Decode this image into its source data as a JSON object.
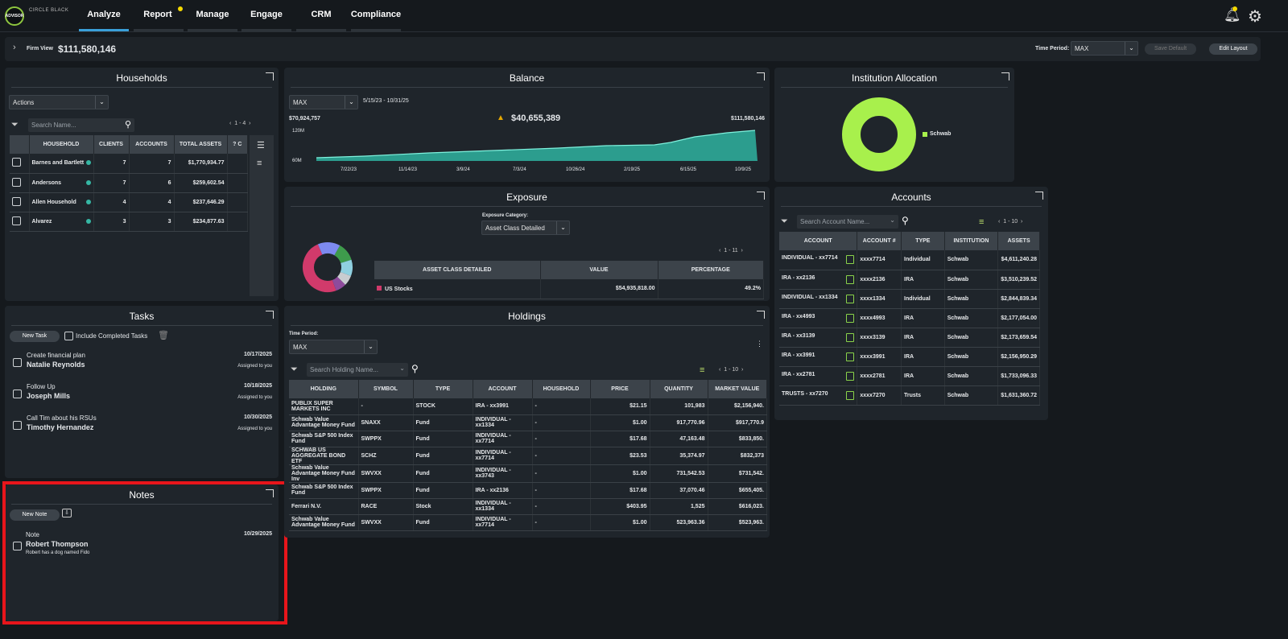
{
  "nav": {
    "logo_text": "ADVISOR",
    "logo2_text": "CIRCLE BLACK",
    "items": [
      "Analyze",
      "Report",
      "Manage",
      "Engage",
      "CRM",
      "Compliance"
    ]
  },
  "firm": {
    "label": "Firm View",
    "value": "$111,580,146",
    "time_period_label": "Time Period:",
    "time_period_value": "MAX",
    "save_default": "Save Default",
    "edit_layout": "Edit Layout"
  },
  "households": {
    "title": "Households",
    "actions": "Actions",
    "search_placeholder": "Search Name...",
    "pager": "1 - 4",
    "columns": [
      "HOUSEHOLD",
      "CLIENTS",
      "ACCOUNTS",
      "TOTAL ASSETS",
      "? C"
    ],
    "rows": [
      [
        "Barnes and Bartlett",
        "7",
        "7",
        "$1,770,934.77"
      ],
      [
        "Andersons",
        "7",
        "6",
        "$259,602.54"
      ],
      [
        "Allen Household",
        "4",
        "4",
        "$237,646.29"
      ],
      [
        "Alvarez",
        "3",
        "3",
        "$234,877.63"
      ]
    ]
  },
  "balance": {
    "title": "Balance",
    "period": "MAX",
    "range": "5/15/23 - 10/31/25",
    "left_value": "$70,924,757",
    "center_value": "$40,655,389",
    "right_value": "$111,580,146",
    "y_ticks": [
      "120M",
      "60M"
    ],
    "x_ticks": [
      "7/22/23",
      "11/14/23",
      "3/9/24",
      "7/3/24",
      "10/26/24",
      "2/19/25",
      "6/15/25",
      "10/9/25"
    ]
  },
  "institution": {
    "title": "Institution Allocation",
    "legend": "Schwab",
    "color": "#a8f04c"
  },
  "exposure": {
    "title": "Exposure",
    "category_label": "Exposure Category:",
    "category_value": "Asset Class Detailed",
    "pager": "1 - 11",
    "columns": [
      "ASSET CLASS DETAILED",
      "VALUE",
      "PERCENTAGE"
    ],
    "rows": [
      [
        "US Stocks",
        "$54,935,818.00",
        "49.2%"
      ]
    ]
  },
  "accounts": {
    "title": "Accounts",
    "search_placeholder": "Search Account Name...",
    "pager": "1 - 10",
    "columns": [
      "ACCOUNT",
      "ACCOUNT #",
      "TYPE",
      "INSTITUTION",
      "ASSETS"
    ],
    "rows": [
      [
        "INDIVIDUAL - xx7714",
        "xxxx7714",
        "Individual",
        "Schwab",
        "$4,611,240.28"
      ],
      [
        "IRA - xx2136",
        "xxxx2136",
        "IRA",
        "Schwab",
        "$3,510,239.52"
      ],
      [
        "INDIVIDUAL - xx1334",
        "xxxx1334",
        "Individual",
        "Schwab",
        "$2,844,839.34"
      ],
      [
        "IRA - xx4993",
        "xxxx4993",
        "IRA",
        "Schwab",
        "$2,177,054.00"
      ],
      [
        "IRA - xx3139",
        "xxxx3139",
        "IRA",
        "Schwab",
        "$2,173,659.54"
      ],
      [
        "IRA - xx3991",
        "xxxx3991",
        "IRA",
        "Schwab",
        "$2,156,950.29"
      ],
      [
        "IRA - xx2781",
        "xxxx2781",
        "IRA",
        "Schwab",
        "$1,733,096.33"
      ],
      [
        "TRUSTS - xx7270",
        "xxxx7270",
        "Trusts",
        "Schwab",
        "$1,631,360.72"
      ]
    ]
  },
  "tasks": {
    "title": "Tasks",
    "new_task": "New Task",
    "include_completed": "Include Completed Tasks",
    "items": [
      {
        "title": "Create financial plan",
        "person": "Natalie Reynolds",
        "date": "10/17/2025",
        "assigned": "Assigned to you"
      },
      {
        "title": "Follow Up",
        "person": "Joseph Mills",
        "date": "10/18/2025",
        "assigned": "Assigned to you"
      },
      {
        "title": "Call Tim about his RSUs",
        "person": "Timothy Hernandez",
        "date": "10/30/2025",
        "assigned": "Assigned to you"
      }
    ]
  },
  "holdings": {
    "title": "Holdings",
    "time_label": "Time Period:",
    "time_value": "MAX",
    "search_placeholder": "Search Holding Name...",
    "pager": "1 - 10",
    "columns": [
      "HOLDING",
      "SYMBOL",
      "TYPE",
      "ACCOUNT",
      "HOUSEHOLD",
      "PRICE",
      "QUANTITY",
      "MARKET VALUE"
    ],
    "rows": [
      [
        "PUBLIX SUPER MARKETS INC",
        "-",
        "STOCK",
        "IRA - xx3991",
        "-",
        "$21.15",
        "101,983",
        "$2,156,940."
      ],
      [
        "Schwab Value Advantage Money Fund",
        "SNAXX",
        "Fund",
        "INDIVIDUAL - xx1334",
        "-",
        "$1.00",
        "917,770.96",
        "$917,770.9"
      ],
      [
        "Schwab S&P 500 Index Fund",
        "SWPPX",
        "Fund",
        "INDIVIDUAL - xx7714",
        "-",
        "$17.68",
        "47,163.48",
        "$833,850."
      ],
      [
        "SCHWAB US AGGREGATE BOND ETF",
        "SCHZ",
        "Fund",
        "INDIVIDUAL - xx7714",
        "-",
        "$23.53",
        "35,374.97",
        "$832,373"
      ],
      [
        "Schwab Value Advantage Money Fund Inv",
        "SWVXX",
        "Fund",
        "INDIVIDUAL - xx3743",
        "-",
        "$1.00",
        "731,542.53",
        "$731,542."
      ],
      [
        "Schwab S&P 500 Index Fund",
        "SWPPX",
        "Fund",
        "IRA - xx2136",
        "-",
        "$17.68",
        "37,070.46",
        "$655,405."
      ],
      [
        "Ferrari N.V.",
        "RACE",
        "Stock",
        "INDIVIDUAL - xx1334",
        "-",
        "$403.95",
        "1,525",
        "$616,023."
      ],
      [
        "Schwab Value Advantage Money Fund",
        "SWVXX",
        "Fund",
        "INDIVIDUAL - xx7714",
        "-",
        "$1.00",
        "523,963.36",
        "$523,963."
      ]
    ]
  },
  "notes": {
    "title": "Notes",
    "new_note": "New Note",
    "items": [
      {
        "type": "Note",
        "person": "Robert Thompson",
        "text": "Robert has a dog named Fido",
        "date": "10/29/2025"
      }
    ]
  }
}
